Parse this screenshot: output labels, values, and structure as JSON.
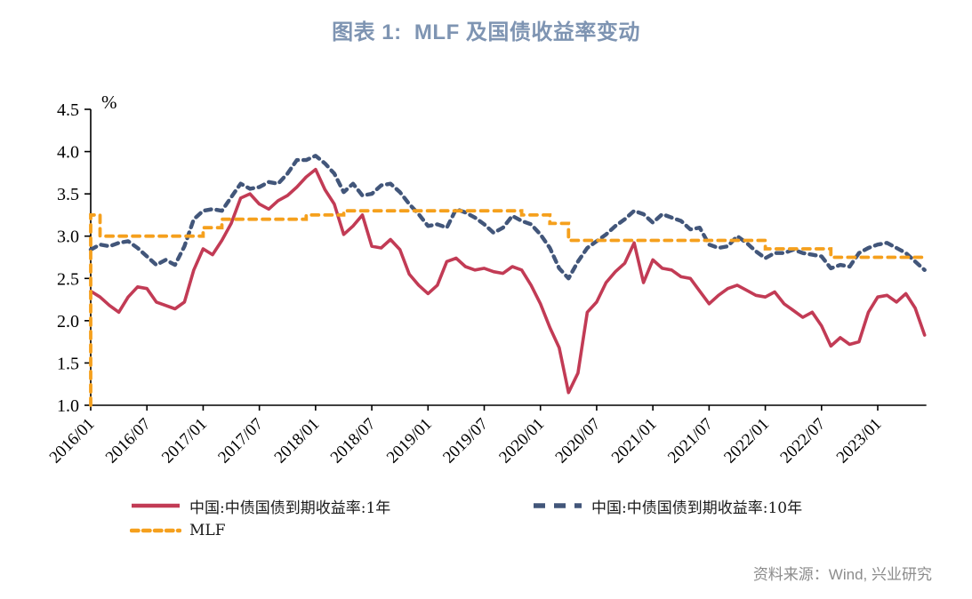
{
  "title": "图表 1:  MLF 及国债收益率变动",
  "source": "资料来源：Wind, 兴业研究",
  "colors": {
    "title_blue": "#7E94B2",
    "yield_1y_red": "#C23B55",
    "yield_10y_blue": "#42567A",
    "mlf_orange": "#F5A01D",
    "axis_black": "#000000",
    "source_gray": "#8C8C8C"
  },
  "chart_data": {
    "type": "line",
    "title": "图表 1:  MLF 及国债收益率变动",
    "unit_label": "%",
    "ylim": [
      1.0,
      4.5
    ],
    "ytick_step": 0.5,
    "grid": false,
    "legend_position": "bottom",
    "x_start": "2016/01",
    "x_end": "2023/06",
    "x_frequency": "monthly",
    "xtick_labels": [
      "2016/01",
      "2016/07",
      "2017/01",
      "2017/07",
      "2018/01",
      "2018/07",
      "2019/01",
      "2019/07",
      "2020/01",
      "2020/07",
      "2021/01",
      "2021/07",
      "2022/01",
      "2022/07",
      "2023/01"
    ],
    "series": [
      {
        "name": "中国:中债国债到期收益率:1年",
        "style": "solid",
        "color": "#C23B55",
        "values": [
          2.35,
          2.28,
          2.18,
          2.1,
          2.28,
          2.4,
          2.38,
          2.22,
          2.18,
          2.14,
          2.22,
          2.6,
          2.85,
          2.78,
          2.95,
          3.15,
          3.45,
          3.5,
          3.38,
          3.32,
          3.42,
          3.48,
          3.58,
          3.7,
          3.79,
          3.55,
          3.38,
          3.02,
          3.12,
          3.25,
          2.88,
          2.86,
          2.96,
          2.84,
          2.55,
          2.42,
          2.32,
          2.42,
          2.7,
          2.74,
          2.64,
          2.6,
          2.62,
          2.58,
          2.56,
          2.64,
          2.6,
          2.42,
          2.2,
          1.92,
          1.68,
          1.15,
          1.38,
          2.1,
          2.22,
          2.45,
          2.58,
          2.68,
          2.92,
          2.45,
          2.72,
          2.62,
          2.6,
          2.52,
          2.5,
          2.35,
          2.2,
          2.3,
          2.38,
          2.42,
          2.36,
          2.3,
          2.28,
          2.34,
          2.2,
          2.12,
          2.04,
          2.1,
          1.94,
          1.7,
          1.8,
          1.72,
          1.75,
          2.1,
          2.28,
          2.3,
          2.22,
          2.32,
          2.15,
          1.83
        ]
      },
      {
        "name": "中国:中债国债到期收益率:10年",
        "style": "dashed",
        "color": "#42567A",
        "values": [
          2.84,
          2.9,
          2.88,
          2.92,
          2.94,
          2.86,
          2.76,
          2.66,
          2.72,
          2.66,
          2.88,
          3.2,
          3.3,
          3.32,
          3.3,
          3.46,
          3.62,
          3.56,
          3.58,
          3.64,
          3.62,
          3.74,
          3.9,
          3.9,
          3.95,
          3.86,
          3.74,
          3.52,
          3.62,
          3.48,
          3.5,
          3.6,
          3.62,
          3.52,
          3.38,
          3.26,
          3.12,
          3.14,
          3.1,
          3.32,
          3.28,
          3.22,
          3.14,
          3.04,
          3.1,
          3.24,
          3.18,
          3.14,
          3.02,
          2.86,
          2.62,
          2.5,
          2.7,
          2.86,
          2.94,
          3.02,
          3.12,
          3.2,
          3.3,
          3.26,
          3.16,
          3.26,
          3.22,
          3.18,
          3.08,
          3.1,
          2.9,
          2.86,
          2.88,
          3.0,
          2.92,
          2.82,
          2.74,
          2.8,
          2.8,
          2.84,
          2.8,
          2.78,
          2.76,
          2.62,
          2.66,
          2.64,
          2.8,
          2.86,
          2.9,
          2.92,
          2.86,
          2.8,
          2.7,
          2.6
        ]
      },
      {
        "name": "MLF",
        "style": "dashed-step",
        "color": "#F5A01D",
        "initial_baseline": 1.0,
        "steps": [
          [
            "2016/01",
            3.25
          ],
          [
            "2016/02",
            3.0
          ],
          [
            "2017/01",
            3.1
          ],
          [
            "2017/03",
            3.2
          ],
          [
            "2017/12",
            3.25
          ],
          [
            "2018/04",
            3.3
          ],
          [
            "2019/11",
            3.25
          ],
          [
            "2020/02",
            3.15
          ],
          [
            "2020/04",
            2.95
          ],
          [
            "2022/01",
            2.85
          ],
          [
            "2022/08",
            2.75
          ]
        ]
      }
    ]
  }
}
